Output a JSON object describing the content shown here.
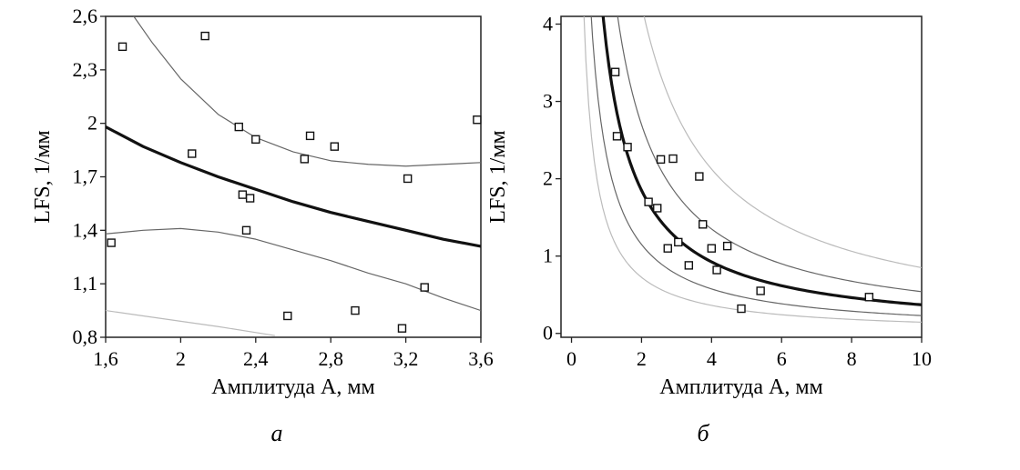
{
  "chart_data": [
    {
      "type": "scatter",
      "panel_label": "а",
      "xlabel": "Амплитуда A, мм",
      "ylabel": "LFS, 1/мм",
      "xlim": [
        1.6,
        3.6
      ],
      "ylim": [
        0.8,
        2.6
      ],
      "x_ticks": [
        "1,6",
        "2",
        "2,4",
        "2,8",
        "3,2",
        "3,6"
      ],
      "y_ticks": [
        "0,8",
        "1,1",
        "1,4",
        "1,7",
        "2",
        "2,3",
        "2,6"
      ],
      "points": [
        {
          "x": 1.69,
          "y": 2.43
        },
        {
          "x": 2.13,
          "y": 2.49
        },
        {
          "x": 1.63,
          "y": 1.33
        },
        {
          "x": 2.06,
          "y": 1.83
        },
        {
          "x": 2.31,
          "y": 1.98
        },
        {
          "x": 2.4,
          "y": 1.91
        },
        {
          "x": 2.33,
          "y": 1.6
        },
        {
          "x": 2.37,
          "y": 1.58
        },
        {
          "x": 2.35,
          "y": 1.4
        },
        {
          "x": 2.66,
          "y": 1.8
        },
        {
          "x": 2.69,
          "y": 1.93
        },
        {
          "x": 2.82,
          "y": 1.87
        },
        {
          "x": 2.57,
          "y": 0.92
        },
        {
          "x": 2.93,
          "y": 0.95
        },
        {
          "x": 3.21,
          "y": 1.69
        },
        {
          "x": 3.3,
          "y": 1.08
        },
        {
          "x": 3.18,
          "y": 0.85
        },
        {
          "x": 3.58,
          "y": 2.02
        }
      ],
      "series": [
        {
          "name": "fit",
          "style": "thick",
          "x": [
            1.6,
            1.8,
            2.0,
            2.2,
            2.4,
            2.6,
            2.8,
            3.0,
            3.2,
            3.4,
            3.6
          ],
          "y": [
            1.98,
            1.87,
            1.78,
            1.7,
            1.63,
            1.56,
            1.5,
            1.45,
            1.4,
            1.35,
            1.31
          ]
        },
        {
          "name": "upper-band",
          "style": "thin",
          "x": [
            1.75,
            1.85,
            2.0,
            2.2,
            2.4,
            2.6,
            2.8,
            3.0,
            3.2,
            3.4,
            3.6
          ],
          "y": [
            2.6,
            2.45,
            2.25,
            2.05,
            1.92,
            1.84,
            1.79,
            1.77,
            1.76,
            1.77,
            1.78
          ]
        },
        {
          "name": "lower-band",
          "style": "thin",
          "x": [
            1.6,
            1.8,
            2.0,
            2.2,
            2.4,
            2.6,
            2.8,
            3.0,
            3.2,
            3.4,
            3.6
          ],
          "y": [
            1.38,
            1.4,
            1.41,
            1.39,
            1.35,
            1.29,
            1.23,
            1.16,
            1.1,
            1.02,
            0.95
          ]
        },
        {
          "name": "lower-outer",
          "style": "faint",
          "x": [
            1.6,
            1.8,
            2.0,
            2.2,
            2.5
          ],
          "y": [
            0.95,
            0.92,
            0.89,
            0.86,
            0.81
          ]
        }
      ]
    },
    {
      "type": "scatter",
      "panel_label": "б",
      "xlabel": "Амплитуда A, мм",
      "ylabel": "LFS, 1/мм",
      "xlim": [
        -0.3,
        10
      ],
      "ylim": [
        -0.05,
        4.1
      ],
      "x_ticks": [
        "0",
        "2",
        "4",
        "6",
        "8",
        "10"
      ],
      "y_ticks": [
        "0",
        "1",
        "2",
        "3",
        "4"
      ],
      "points": [
        {
          "x": 1.25,
          "y": 3.38
        },
        {
          "x": 1.3,
          "y": 2.55
        },
        {
          "x": 1.6,
          "y": 2.41
        },
        {
          "x": 2.55,
          "y": 2.25
        },
        {
          "x": 2.9,
          "y": 2.26
        },
        {
          "x": 3.65,
          "y": 2.03
        },
        {
          "x": 2.2,
          "y": 1.7
        },
        {
          "x": 2.45,
          "y": 1.62
        },
        {
          "x": 3.75,
          "y": 1.41
        },
        {
          "x": 2.75,
          "y": 1.1
        },
        {
          "x": 3.05,
          "y": 1.18
        },
        {
          "x": 4.0,
          "y": 1.1
        },
        {
          "x": 4.45,
          "y": 1.13
        },
        {
          "x": 3.35,
          "y": 0.88
        },
        {
          "x": 4.15,
          "y": 0.82
        },
        {
          "x": 5.4,
          "y": 0.55
        },
        {
          "x": 4.85,
          "y": 0.32
        },
        {
          "x": 8.5,
          "y": 0.47
        }
      ],
      "series": [
        {
          "name": "fit",
          "style": "thick",
          "k": 3.7
        },
        {
          "name": "inner-upper",
          "style": "thin",
          "k": 5.4
        },
        {
          "name": "inner-lower",
          "style": "thin",
          "k": 2.3
        },
        {
          "name": "outer-upper",
          "style": "faint",
          "k": 8.5
        },
        {
          "name": "outer-lower",
          "style": "faint",
          "k": 1.45
        }
      ]
    }
  ]
}
